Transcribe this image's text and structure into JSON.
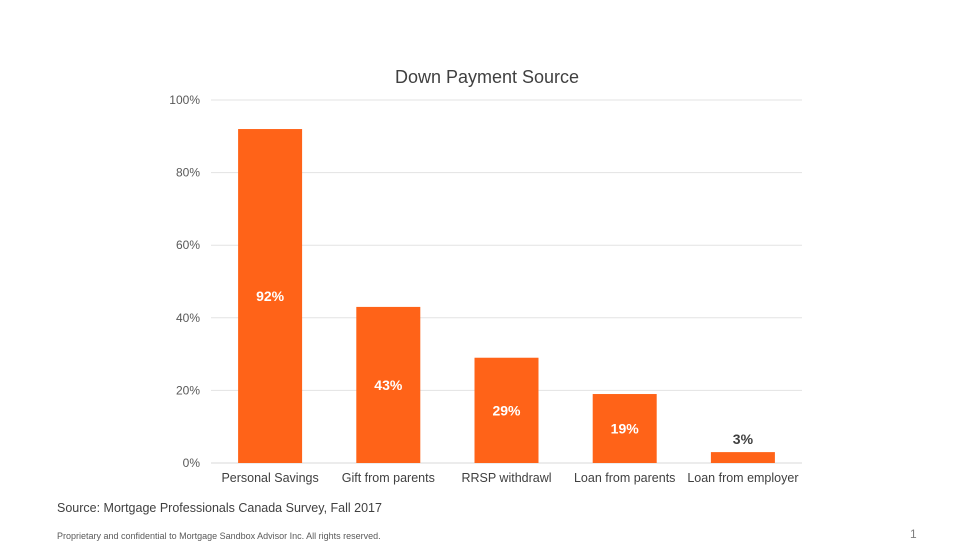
{
  "chart_data": {
    "type": "bar",
    "title": "Down Payment Source",
    "xlabel": "",
    "ylabel": "",
    "categories": [
      "Personal Savings",
      "Gift from parents",
      "RRSP withdrawl",
      "Loan from parents",
      "Loan from employer"
    ],
    "values": [
      92,
      43,
      29,
      19,
      3
    ],
    "data_labels": [
      "92%",
      "43%",
      "29%",
      "19%",
      "3%"
    ],
    "ylim": [
      0,
      100
    ],
    "yticks": [
      0,
      20,
      40,
      60,
      80,
      100
    ],
    "ytick_labels": [
      "0%",
      "20%",
      "40%",
      "60%",
      "80%",
      "100%"
    ],
    "grid": true,
    "legend": "none",
    "bar_color": "#FF6318",
    "inside_label_color": "#FFFFFF",
    "outside_label_color": "#404040"
  },
  "source_text": "Source: Mortgage Professionals Canada Survey, Fall 2017",
  "footer_text": "Proprietary and confidential to Mortgage Sandbox Advisor Inc. All rights reserved.",
  "page_number": "1"
}
